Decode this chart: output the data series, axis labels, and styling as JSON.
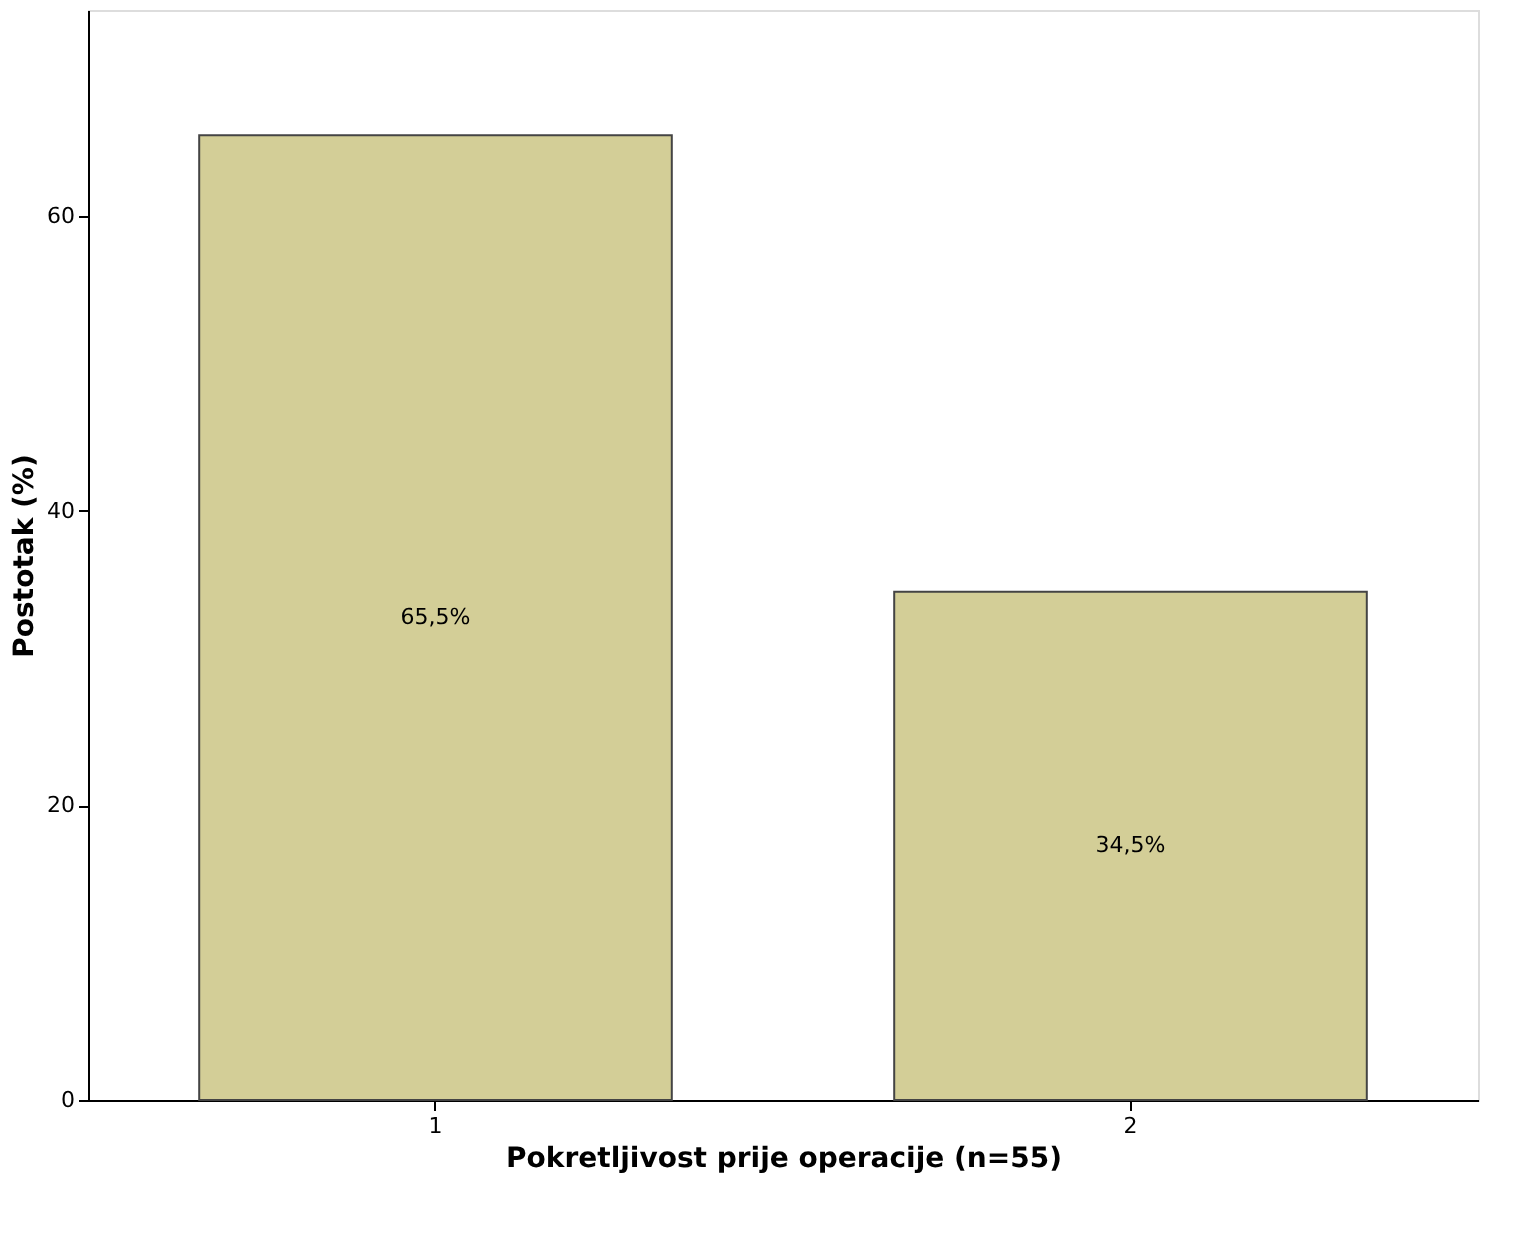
{
  "chart_data": {
    "type": "bar",
    "xlabel": "Pokretljivost prije operacije (n=55)",
    "ylabel": "Postotak (%)",
    "categories": [
      "1",
      "2"
    ],
    "values": [
      65.5,
      34.5
    ],
    "value_labels": [
      "65,5%",
      "34,5%"
    ],
    "color": "#d3ce97",
    "ylim": [
      0,
      74
    ],
    "yticks": [
      0,
      20,
      40,
      60
    ],
    "grid": false
  }
}
